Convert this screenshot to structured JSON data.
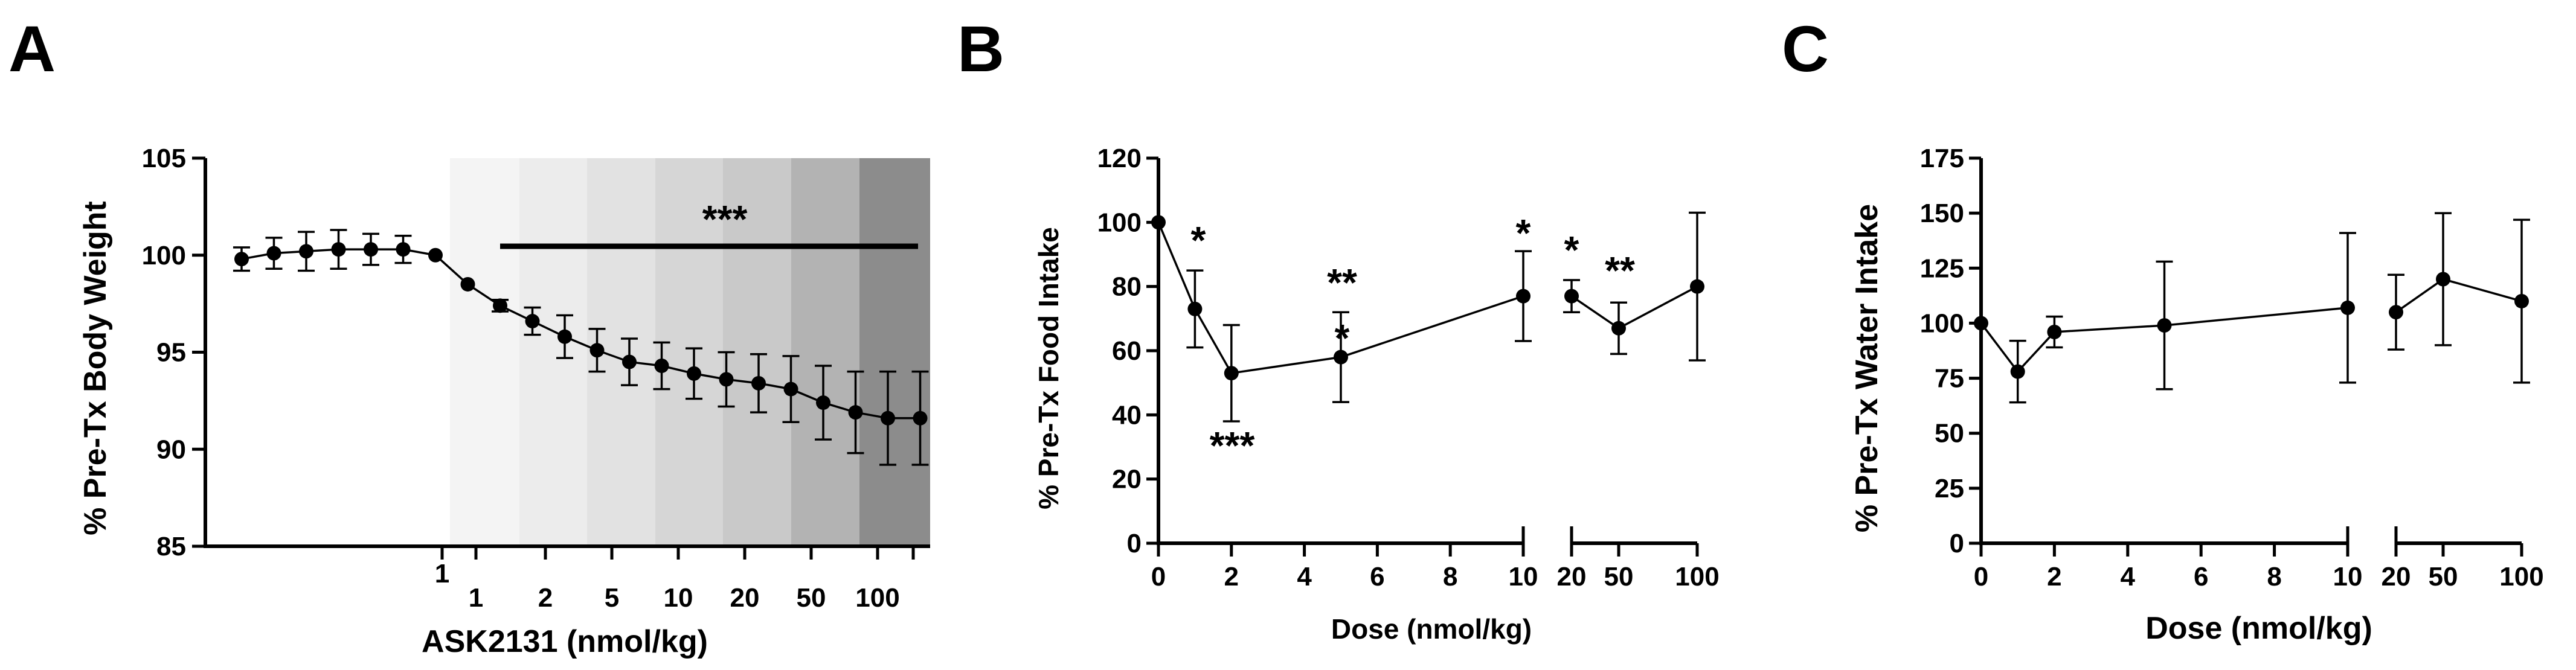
{
  "figure": {
    "panels": [
      {
        "id": "A",
        "letter": "A"
      },
      {
        "id": "B",
        "letter": "B"
      },
      {
        "id": "C",
        "letter": "C"
      }
    ]
  },
  "chart_data": [
    {
      "panel": "A",
      "type": "line",
      "ylabel": "% Pre-Tx Body Weight",
      "xlabel": "ASK2131 (nmol/kg)",
      "ylim": [
        85,
        105
      ],
      "yticks": [
        85,
        90,
        95,
        100,
        105
      ],
      "dose_labels": [
        "1",
        "2",
        "5",
        "10",
        "20",
        "50",
        "100"
      ],
      "shading": [
        "#f4f4f4",
        "#ececec",
        "#e2e2e2",
        "#d6d6d6",
        "#c9c9c9",
        "#b3b3b3",
        "#8c8c8c"
      ],
      "significance": {
        "label": "***",
        "from_point": 8,
        "to_point": 22
      },
      "series": [
        {
          "name": "Body weight",
          "x_index": [
            0,
            1,
            2,
            3,
            4,
            5,
            6,
            7,
            8,
            9,
            10,
            11,
            12,
            13,
            14,
            15,
            16,
            17,
            18,
            19,
            20,
            21
          ],
          "values": [
            99.8,
            100.1,
            100.2,
            100.3,
            100.3,
            100.3,
            100.0,
            98.5,
            97.4,
            96.6,
            95.8,
            95.1,
            94.5,
            94.3,
            93.9,
            93.6,
            93.4,
            93.1,
            92.4,
            91.9,
            91.6,
            91.6
          ],
          "errors": [
            0.6,
            0.8,
            1.0,
            1.0,
            0.8,
            0.7,
            0.2,
            0.2,
            0.3,
            0.7,
            1.1,
            1.1,
            1.2,
            1.2,
            1.3,
            1.4,
            1.5,
            1.7,
            1.9,
            2.1,
            2.4,
            2.4
          ]
        }
      ]
    },
    {
      "panel": "B",
      "type": "line",
      "ylabel": "% Pre-Tx Food Intake",
      "xlabel": "Dose (nmol/kg)",
      "ylim": [
        0,
        120
      ],
      "yticks": [
        0,
        20,
        40,
        60,
        80,
        100,
        120
      ],
      "xlim_left": [
        0,
        10
      ],
      "xticks_left": [
        0,
        2,
        4,
        6,
        8,
        10
      ],
      "xticks_right": [
        "20",
        "50",
        "100"
      ],
      "series": [
        {
          "name": "Food intake",
          "points": [
            {
              "dose": "0",
              "value": 100,
              "error": 0,
              "sig": ""
            },
            {
              "dose": "1",
              "value": 73,
              "error": 12,
              "sig": "*"
            },
            {
              "dose": "2",
              "value": 53,
              "error": 15,
              "sig": "***"
            },
            {
              "dose": "5",
              "value": 58,
              "error": 14,
              "sig": "**",
              "sig2": "*"
            },
            {
              "dose": "10",
              "value": 77,
              "error": 14,
              "sig": "*"
            },
            {
              "dose": "20",
              "value": 77,
              "error": 5,
              "sig": "*"
            },
            {
              "dose": "50",
              "value": 67,
              "error": 8,
              "sig": "**"
            },
            {
              "dose": "100",
              "value": 80,
              "error": 23,
              "sig": ""
            }
          ]
        }
      ]
    },
    {
      "panel": "C",
      "type": "line",
      "ylabel": "% Pre-Tx Water Intake",
      "xlabel": "Dose (nmol/kg)",
      "ylim": [
        0,
        175
      ],
      "yticks": [
        0,
        25,
        50,
        75,
        100,
        125,
        150,
        175
      ],
      "xlim_left": [
        0,
        10
      ],
      "xticks_left": [
        0,
        2,
        4,
        6,
        8,
        10
      ],
      "xticks_right": [
        "20",
        "50",
        "100"
      ],
      "series": [
        {
          "name": "Water intake",
          "points": [
            {
              "dose": "0",
              "value": 100,
              "error": 0
            },
            {
              "dose": "1",
              "value": 78,
              "error": 14
            },
            {
              "dose": "2",
              "value": 96,
              "error": 7
            },
            {
              "dose": "5",
              "value": 99,
              "error": 29
            },
            {
              "dose": "10",
              "value": 107,
              "error": 34
            },
            {
              "dose": "20",
              "value": 105,
              "error": 17
            },
            {
              "dose": "50",
              "value": 120,
              "error": 30
            },
            {
              "dose": "100",
              "value": 110,
              "error": 37
            }
          ]
        }
      ]
    }
  ]
}
